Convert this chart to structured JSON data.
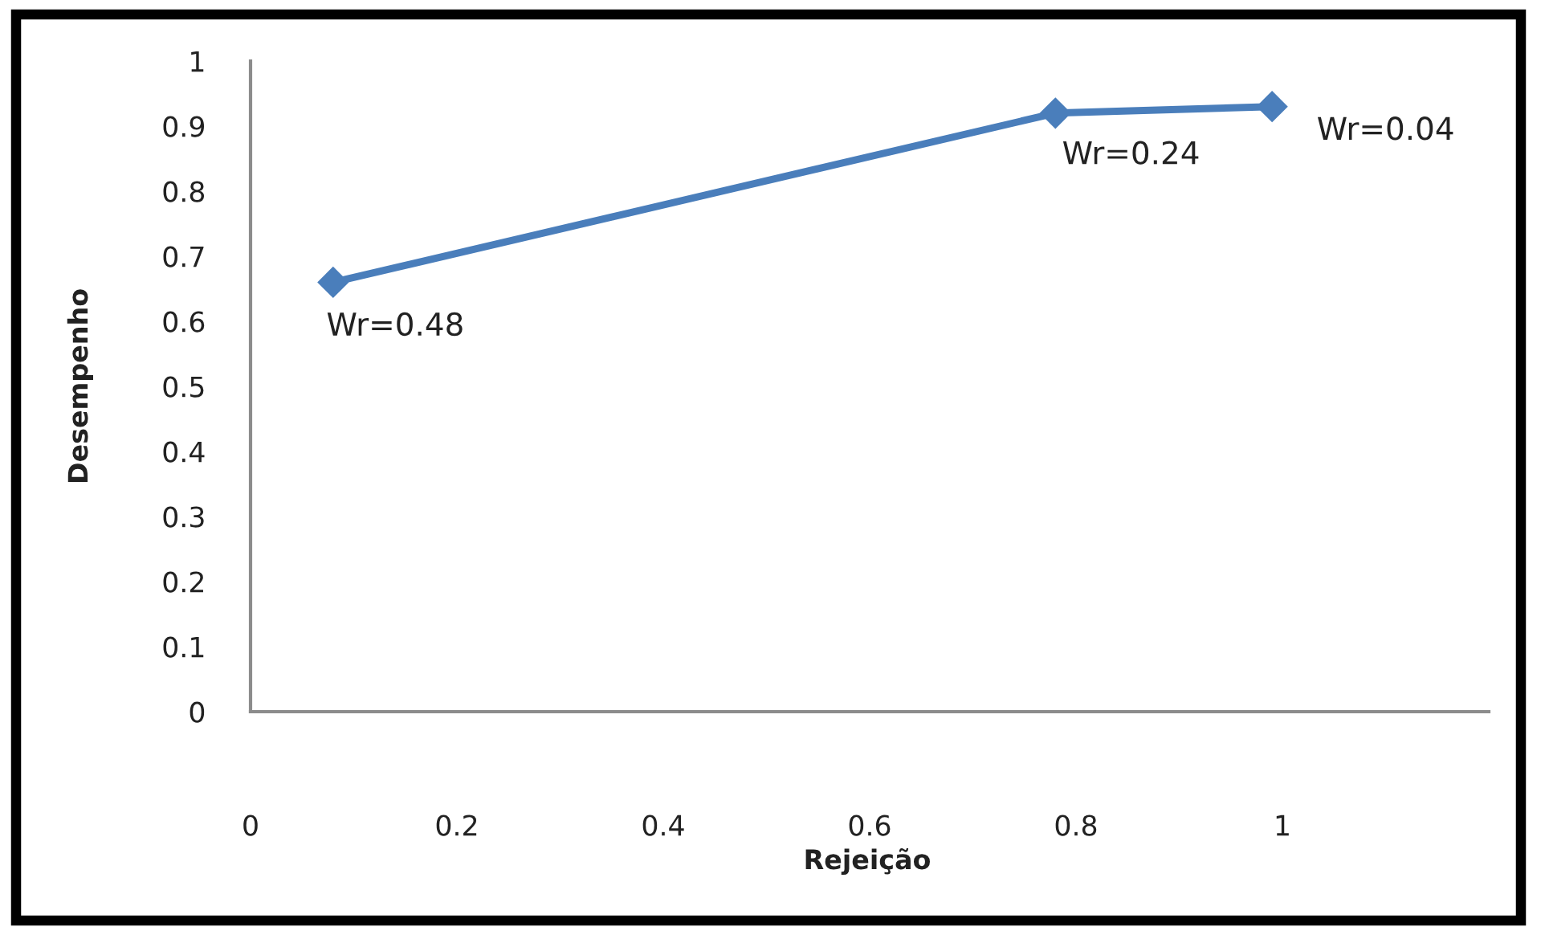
{
  "chart_data": {
    "type": "line",
    "xlabel": "Rejeição",
    "ylabel": "Desempenho",
    "x": [
      0.08,
      0.78,
      0.99
    ],
    "series": [
      {
        "color": "#4a7ebb",
        "values": [
          0.66,
          0.92,
          0.93
        ]
      }
    ],
    "marker": "diamond",
    "line_style": "solid",
    "grid": false,
    "xlim": [
      0,
      1.2
    ],
    "xticks": [
      0,
      0.2,
      0.4,
      0.6,
      0.8,
      1
    ],
    "ylim": [
      0,
      1
    ],
    "yticks": [
      0,
      0.1,
      0.2,
      0.3,
      0.4,
      0.5,
      0.6,
      0.7,
      0.8,
      0.9,
      1
    ],
    "annotations": [
      {
        "text": "Wr=0.48",
        "x": 0.08,
        "y": 0.66
      },
      {
        "text": "Wr=0.24",
        "x": 0.78,
        "y": 0.92
      },
      {
        "text": "Wr=0.04",
        "x": 0.99,
        "y": 0.93
      }
    ]
  }
}
